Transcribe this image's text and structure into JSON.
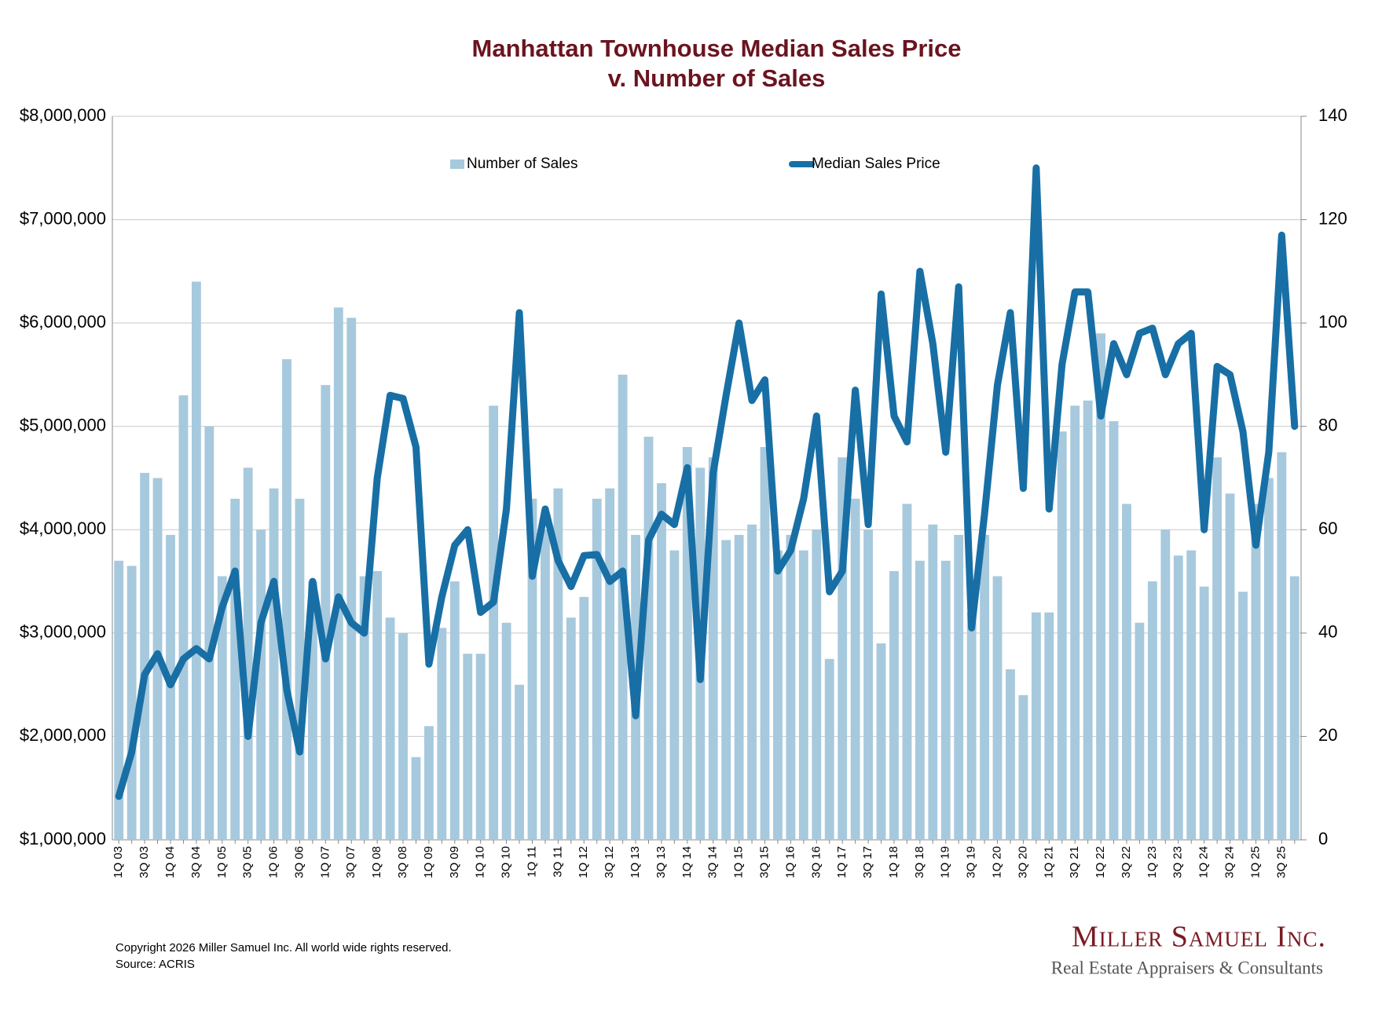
{
  "chart_data": {
    "type": "combo",
    "title": [
      "Manhattan Townhouse Median Sales Price",
      "v. Number of Sales"
    ],
    "categories": [
      "1Q 03",
      null,
      "3Q 03",
      null,
      "1Q 04",
      null,
      "3Q 04",
      null,
      "1Q 05",
      null,
      "3Q 05",
      null,
      "1Q 06",
      null,
      "3Q 06",
      null,
      "1Q 07",
      null,
      "3Q 07",
      null,
      "1Q 08",
      null,
      "3Q 08",
      null,
      "1Q 09",
      null,
      "3Q 09",
      null,
      "1Q 10",
      null,
      "3Q 10",
      null,
      "1Q 11",
      null,
      "3Q 11",
      null,
      "1Q 12",
      null,
      "3Q 12",
      null,
      "1Q 13",
      null,
      "3Q 13",
      null,
      "1Q 14",
      null,
      "3Q 14",
      null,
      "1Q 15",
      null,
      "3Q 15",
      null,
      "1Q 16",
      null,
      "3Q 16",
      null,
      "1Q 17",
      null,
      "3Q 17",
      null,
      "1Q 18",
      null,
      "3Q 18",
      null,
      "1Q 19",
      null,
      "3Q 19",
      null,
      "1Q 20",
      null,
      "3Q 20",
      null,
      "1Q 21",
      null,
      "3Q 21",
      null,
      "1Q 22",
      null,
      "3Q 22",
      null,
      "1Q 23",
      null,
      "3Q 23",
      null,
      "1Q 24",
      null,
      "3Q 24",
      null,
      "1Q 25",
      null,
      "3Q 25",
      null
    ],
    "series": [
      {
        "name": "Number of Sales",
        "type": "bar",
        "axis": "y2",
        "color": "#a7c9dd",
        "values": [
          54,
          53,
          71,
          70,
          59,
          86,
          108,
          80,
          51,
          66,
          72,
          60,
          68,
          93,
          66,
          50,
          88,
          103,
          101,
          51,
          52,
          43,
          40,
          16,
          22,
          41,
          50,
          36,
          36,
          84,
          42,
          30,
          66,
          60,
          68,
          43,
          47,
          66,
          68,
          90,
          59,
          78,
          69,
          56,
          76,
          72,
          74,
          58,
          59,
          61,
          76,
          56,
          59,
          56,
          60,
          35,
          74,
          66,
          60,
          38,
          52,
          65,
          54,
          61,
          54,
          59,
          44,
          59,
          51,
          33,
          28,
          44,
          44,
          79,
          84,
          85,
          98,
          81,
          65,
          42,
          50,
          60,
          55,
          56,
          49,
          74,
          67,
          48,
          65,
          70,
          75,
          51
        ]
      },
      {
        "name": "Median Sales Price",
        "type": "line",
        "color": "#186fa5",
        "values": [
          1420000,
          1850000,
          2600000,
          2800000,
          2500000,
          2750000,
          2850000,
          2750000,
          3250000,
          3600000,
          2000000,
          3100000,
          3500000,
          2450000,
          1850000,
          3500000,
          2750000,
          3350000,
          3100000,
          3000000,
          4500000,
          5300000,
          5270000,
          4800000,
          2700000,
          3350000,
          3850000,
          4000000,
          3200000,
          3300000,
          4200000,
          6100000,
          3550000,
          4200000,
          3700000,
          3450000,
          3750000,
          3760000,
          3500000,
          3600000,
          2200000,
          3900000,
          4150000,
          4050000,
          4600000,
          2550000,
          4550000,
          5300000,
          6000000,
          5250000,
          5450000,
          3600000,
          3800000,
          4300000,
          5100000,
          3400000,
          3600000,
          5350000,
          4050000,
          6280000,
          5100000,
          4850000,
          6500000,
          5800000,
          4750000,
          6350000,
          3050000,
          4150000,
          5400000,
          6100000,
          4400000,
          7500000,
          4200000,
          5600000,
          6300000,
          6300000,
          5100000,
          5800000,
          5500000,
          5900000,
          5950000,
          5500000,
          5800000,
          5900000,
          4000000,
          5580000,
          5500000,
          4950000,
          3850000,
          4750000,
          6850000,
          5000000
        ]
      }
    ],
    "ylim": [
      1000000,
      8000000
    ],
    "yticks": [
      {
        "value": 1000000,
        "label": "$1,000,000"
      },
      {
        "value": 2000000,
        "label": "$2,000,000"
      },
      {
        "value": 3000000,
        "label": "$3,000,000"
      },
      {
        "value": 4000000,
        "label": "$4,000,000"
      },
      {
        "value": 5000000,
        "label": "$5,000,000"
      },
      {
        "value": 6000000,
        "label": "$6,000,000"
      },
      {
        "value": 7000000,
        "label": "$7,000,000"
      },
      {
        "value": 8000000,
        "label": "$8,000,000"
      }
    ],
    "y2lim": [
      0,
      140
    ],
    "y2ticks": [
      0,
      20,
      40,
      60,
      80,
      100,
      120,
      140
    ],
    "grid": true,
    "legend": "top"
  },
  "footer": {
    "copyright": "Copyright 2026 Miller Samuel Inc.  All world wide rights reserved.",
    "source": "Source: ACRIS",
    "logo_name": "Miller Samuel Inc.",
    "logo_tagline": "Real Estate Appraisers & Consultants"
  }
}
